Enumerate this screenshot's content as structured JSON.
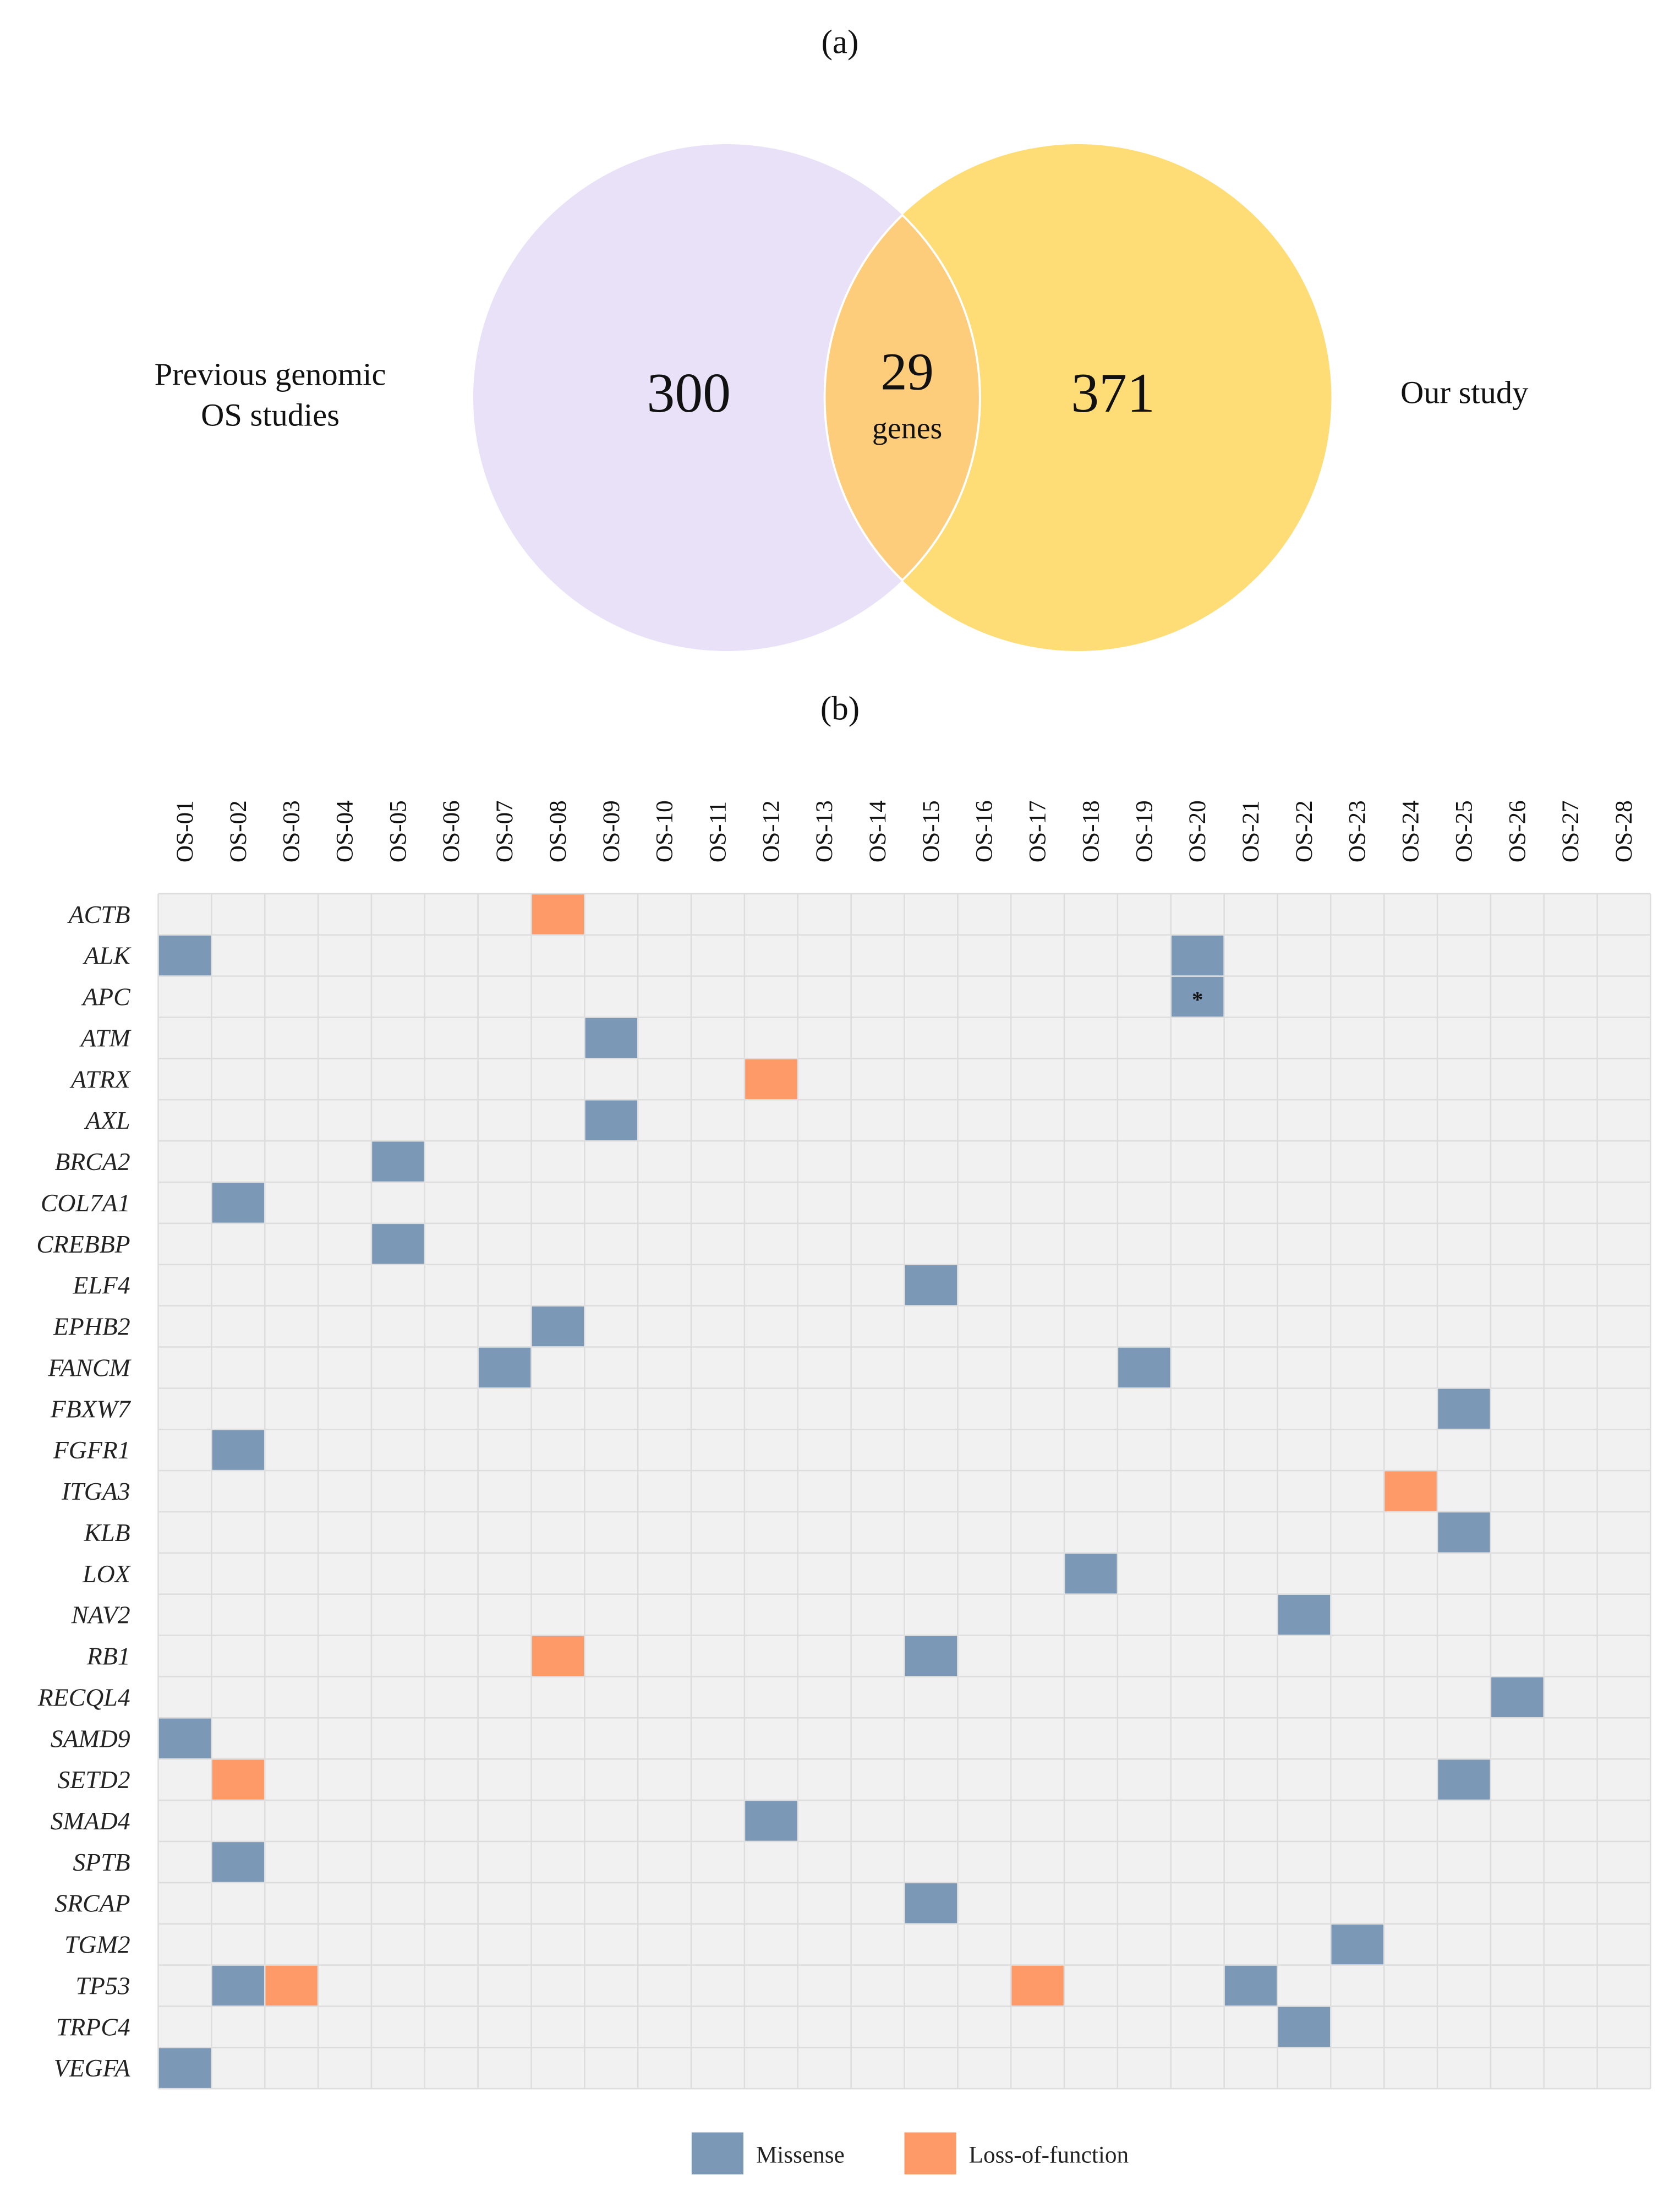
{
  "chart_data": [
    {
      "type": "venn",
      "panel_label": "(a)",
      "sets": [
        {
          "name_lines": [
            "Previous genomic",
            "OS studies"
          ],
          "only_count": 300,
          "color": "#e9e1f7"
        },
        {
          "name_lines": [
            "Our study"
          ],
          "only_count": 371,
          "color": "#fedd77"
        }
      ],
      "intersection": {
        "count": 29,
        "unit": "genes",
        "color": "#fdcd7c"
      }
    },
    {
      "type": "heatmap",
      "panel_label": "(b)",
      "columns": [
        "OS-01",
        "OS-02",
        "OS-03",
        "OS-04",
        "OS-05",
        "OS-06",
        "OS-07",
        "OS-08",
        "OS-09",
        "OS-10",
        "OS-11",
        "OS-12",
        "OS-13",
        "OS-14",
        "OS-15",
        "OS-16",
        "OS-17",
        "OS-18",
        "OS-19",
        "OS-20",
        "OS-21",
        "OS-22",
        "OS-23",
        "OS-24",
        "OS-25",
        "OS-26",
        "OS-27",
        "OS-28"
      ],
      "rows": [
        {
          "gene": "ACTB",
          "missense": [],
          "loss_of_function": [
            8
          ]
        },
        {
          "gene": "ALK",
          "missense": [
            1,
            20
          ],
          "loss_of_function": []
        },
        {
          "gene": "APC",
          "missense": [
            20
          ],
          "loss_of_function": []
        },
        {
          "gene": "ATM",
          "missense": [
            9
          ],
          "loss_of_function": []
        },
        {
          "gene": "ATRX",
          "missense": [],
          "loss_of_function": [
            12
          ]
        },
        {
          "gene": "AXL",
          "missense": [
            9
          ],
          "loss_of_function": []
        },
        {
          "gene": "BRCA2",
          "missense": [
            5
          ],
          "loss_of_function": []
        },
        {
          "gene": "COL7A1",
          "missense": [
            2
          ],
          "loss_of_function": []
        },
        {
          "gene": "CREBBP",
          "missense": [
            5
          ],
          "loss_of_function": []
        },
        {
          "gene": "ELF4",
          "missense": [
            15
          ],
          "loss_of_function": []
        },
        {
          "gene": "EPHB2",
          "missense": [
            8
          ],
          "loss_of_function": []
        },
        {
          "gene": "FANCM",
          "missense": [
            7,
            19
          ],
          "loss_of_function": []
        },
        {
          "gene": "FBXW7",
          "missense": [
            25
          ],
          "loss_of_function": []
        },
        {
          "gene": "FGFR1",
          "missense": [
            2
          ],
          "loss_of_function": []
        },
        {
          "gene": "ITGA3",
          "missense": [],
          "loss_of_function": [
            24
          ]
        },
        {
          "gene": "KLB",
          "missense": [
            25
          ],
          "loss_of_function": []
        },
        {
          "gene": "LOX",
          "missense": [
            18
          ],
          "loss_of_function": []
        },
        {
          "gene": "NAV2",
          "missense": [
            22
          ],
          "loss_of_function": []
        },
        {
          "gene": "RB1",
          "missense": [
            15
          ],
          "loss_of_function": [
            8
          ]
        },
        {
          "gene": "RECQL4",
          "missense": [
            26
          ],
          "loss_of_function": []
        },
        {
          "gene": "SAMD9",
          "missense": [
            1
          ],
          "loss_of_function": []
        },
        {
          "gene": "SETD2",
          "missense": [
            25
          ],
          "loss_of_function": [
            2
          ]
        },
        {
          "gene": "SMAD4",
          "missense": [
            12
          ],
          "loss_of_function": []
        },
        {
          "gene": "SPTB",
          "missense": [
            2
          ],
          "loss_of_function": []
        },
        {
          "gene": "SRCAP",
          "missense": [
            15
          ],
          "loss_of_function": []
        },
        {
          "gene": "TGM2",
          "missense": [
            23
          ],
          "loss_of_function": []
        },
        {
          "gene": "TP53",
          "missense": [
            2,
            21
          ],
          "loss_of_function": [
            3,
            17
          ]
        },
        {
          "gene": "TRPC4",
          "missense": [
            22
          ],
          "loss_of_function": []
        },
        {
          "gene": "VEGFA",
          "missense": [
            1
          ],
          "loss_of_function": []
        }
      ],
      "legend": [
        {
          "label": "Missense",
          "color": "#7b98b6"
        },
        {
          "label": "Loss-of-function",
          "color": "#fd9a68"
        }
      ],
      "annotations": [
        {
          "row_index": 3,
          "column_index": 20,
          "text": "*"
        }
      ]
    }
  ]
}
